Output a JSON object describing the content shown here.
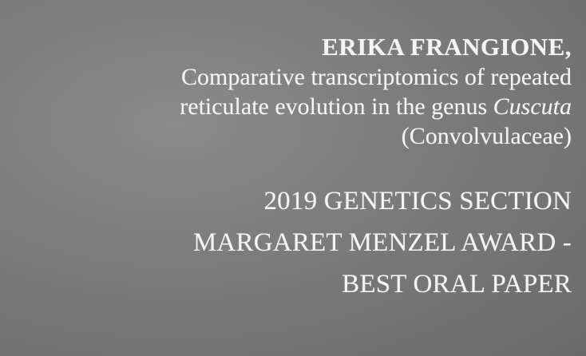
{
  "slide": {
    "author": "ERIKA FRANGIONE,",
    "paper_title": {
      "line1": "Comparative transcriptomics of repeated",
      "line2_prefix": "reticulate evolution in the genus ",
      "line2_taxon": "Cuscuta",
      "line3": "(Convolvulaceae)"
    },
    "award": {
      "line1": "2019 GENETICS SECTION",
      "line2": "MARGARET MENZEL AWARD -",
      "line3": "BEST ORAL PAPER"
    }
  }
}
